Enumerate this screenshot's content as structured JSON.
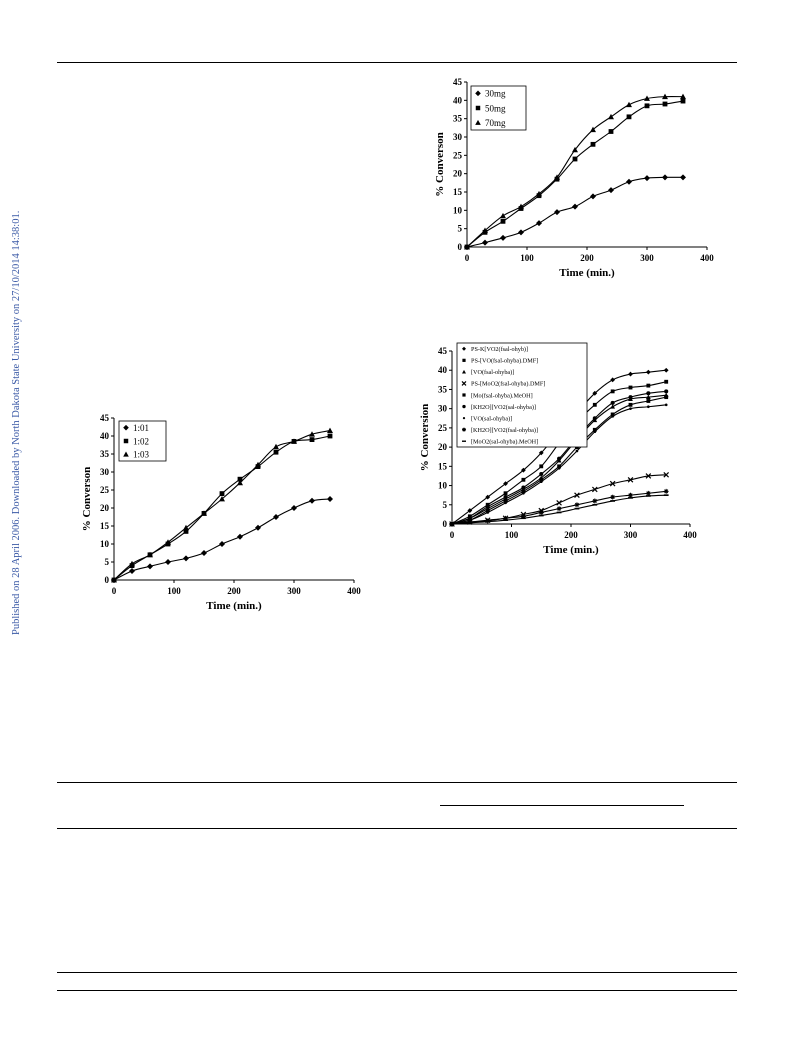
{
  "sidebar_notice": "Published on 28 April 2006. Downloaded by North Dakota State University on 27/10/2014 14:38:01.",
  "chart_data": [
    {
      "id": "amount",
      "type": "scatter",
      "xlabel": "Time (min.)",
      "ylabel": "% Converson",
      "xlim": [
        0,
        400
      ],
      "ylim": [
        0,
        45
      ],
      "xticks": [
        0,
        100,
        200,
        300,
        400
      ],
      "yticks": [
        0,
        5,
        10,
        15,
        20,
        25,
        30,
        35,
        40,
        45
      ],
      "legend": "top-left",
      "x": [
        0,
        30,
        60,
        90,
        120,
        150,
        180,
        210,
        240,
        270,
        300,
        330,
        360
      ],
      "series": [
        {
          "name": "30mg",
          "marker": "diamond",
          "values": [
            0,
            1.2,
            2.5,
            4,
            6.5,
            9.5,
            11,
            13.8,
            15.5,
            17.8,
            18.8,
            19,
            19
          ]
        },
        {
          "name": "50mg",
          "marker": "square",
          "values": [
            0,
            4,
            7,
            10.5,
            14,
            18.5,
            24,
            28,
            31.5,
            35.5,
            38.5,
            39,
            39.8
          ]
        },
        {
          "name": "70mg",
          "marker": "triangle",
          "values": [
            0,
            4.5,
            8.5,
            11,
            14.5,
            19,
            26.5,
            32,
            35.5,
            38.8,
            40.5,
            41,
            41
          ]
        }
      ]
    },
    {
      "id": "ratio",
      "type": "scatter",
      "xlabel": "Time (min.)",
      "ylabel": "% Converson",
      "xlim": [
        0,
        400
      ],
      "ylim": [
        0,
        45
      ],
      "xticks": [
        0,
        100,
        200,
        300,
        400
      ],
      "yticks": [
        0,
        5,
        10,
        15,
        20,
        25,
        30,
        35,
        40,
        45
      ],
      "legend": "top-left",
      "x": [
        0,
        30,
        60,
        90,
        120,
        150,
        180,
        210,
        240,
        270,
        300,
        330,
        360
      ],
      "series": [
        {
          "name": "1:01",
          "marker": "diamond",
          "values": [
            0,
            2.5,
            3.8,
            5,
            6,
            7.5,
            10,
            12,
            14.5,
            17.5,
            20,
            22,
            22.5
          ]
        },
        {
          "name": "1:02",
          "marker": "square",
          "values": [
            0,
            4,
            7,
            10,
            13.5,
            18.5,
            24,
            28,
            31.5,
            35.5,
            38.5,
            39,
            40
          ]
        },
        {
          "name": "1:03",
          "marker": "triangle",
          "values": [
            0,
            4.5,
            7,
            10.5,
            14.5,
            18.5,
            22.5,
            27,
            32,
            37,
            38.5,
            40.5,
            41.5
          ]
        }
      ]
    },
    {
      "id": "catalysts",
      "type": "scatter",
      "xlabel": "Time (min.)",
      "ylabel": "% Conversion",
      "xlim": [
        0,
        400
      ],
      "ylim": [
        0,
        45
      ],
      "xticks": [
        0,
        100,
        200,
        300,
        400
      ],
      "yticks": [
        0,
        5,
        10,
        15,
        20,
        25,
        30,
        35,
        40,
        45
      ],
      "legend": "top-left",
      "x": [
        0,
        30,
        60,
        90,
        120,
        150,
        180,
        210,
        240,
        270,
        300,
        330,
        360
      ],
      "series": [
        {
          "name": "PS-K[VO2(fsal-ohyb)]",
          "marker": "diamond",
          "values": [
            0,
            3.5,
            7,
            10.5,
            14,
            18.5,
            24,
            29,
            34,
            37.5,
            39,
            39.5,
            40
          ]
        },
        {
          "name": "PS-[VO(fsal-ohyba).DMF]",
          "marker": "square",
          "values": [
            0,
            2,
            5,
            8,
            11.5,
            15,
            21,
            26.5,
            31,
            34.5,
            35.5,
            36,
            37
          ]
        },
        {
          "name": "[VO(fsal-ohyba)]",
          "marker": "triangle",
          "values": [
            0,
            1.5,
            4,
            6.5,
            9,
            12,
            16.5,
            22,
            27,
            30.5,
            32.5,
            33,
            33.5
          ]
        },
        {
          "name": "PS-[MoO2(fsal-ohyba).DMF]",
          "marker": "x",
          "values": [
            0,
            0.5,
            1,
            1.5,
            2.5,
            3.5,
            5.5,
            7.5,
            9,
            10.5,
            11.5,
            12.5,
            12.8
          ]
        },
        {
          "name": "[Mo(fsal-ohyba).MeOH]",
          "marker": "square",
          "values": [
            0,
            1,
            3.5,
            6,
            8.5,
            11.5,
            15,
            20,
            24.5,
            28.5,
            31,
            32,
            33
          ]
        },
        {
          "name": "[KH2O][VO2(sal-ohyba)]",
          "marker": "circle",
          "values": [
            0,
            1.5,
            4.5,
            7,
            9.5,
            13,
            17,
            22.5,
            27.5,
            31.5,
            33,
            34,
            34.5
          ]
        },
        {
          "name": "[VO(sal-ohyba)]",
          "marker": "dot",
          "values": [
            0,
            1,
            3,
            5.5,
            8,
            11,
            14.5,
            19,
            24,
            28,
            30,
            30.5,
            31
          ]
        },
        {
          "name": "[KH2O][VO2(fsal-ohyba)]",
          "marker": "star",
          "values": [
            0,
            0.5,
            0.8,
            1.5,
            2,
            3,
            4,
            5,
            6,
            7,
            7.5,
            8,
            8.5
          ]
        },
        {
          "name": "[MoO2(sal-ohyba).MeOH]",
          "marker": "dash",
          "values": [
            0,
            0.3,
            0.6,
            1,
            1.5,
            2.2,
            3,
            4,
            5,
            6,
            6.8,
            7.3,
            7.5
          ]
        }
      ]
    }
  ]
}
